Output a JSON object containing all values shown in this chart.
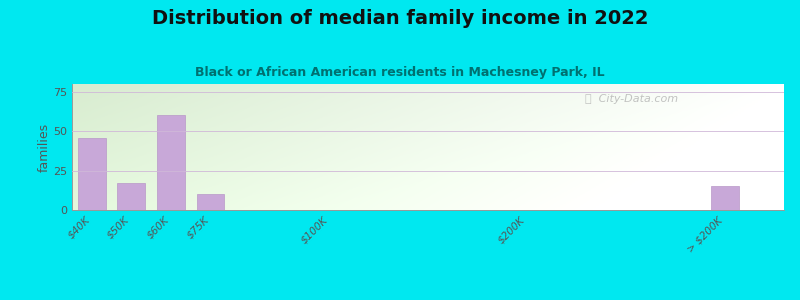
{
  "title": "Distribution of median family income in 2022",
  "subtitle": "Black or African American residents in Machesney Park, IL",
  "ylabel": "families",
  "categories": [
    "$40K",
    "$50K",
    "$60K",
    "$75K",
    "$100K",
    "$200K",
    "> $200K"
  ],
  "values": [
    46,
    17,
    60,
    10,
    0,
    0,
    15
  ],
  "bar_positions": [
    0,
    1,
    2,
    3,
    6,
    11,
    16
  ],
  "bar_width": 0.7,
  "bar_color": "#c8a8d8",
  "bar_edgecolor": "#b898c8",
  "ylim": [
    0,
    80
  ],
  "yticks": [
    0,
    25,
    50,
    75
  ],
  "xlim": [
    -0.5,
    17.5
  ],
  "background_outer": "#00e8f0",
  "watermark": "ⓘ  City-Data.com",
  "title_fontsize": 14,
  "subtitle_fontsize": 9,
  "subtitle_color": "#007070",
  "tick_label_color": "#555555"
}
